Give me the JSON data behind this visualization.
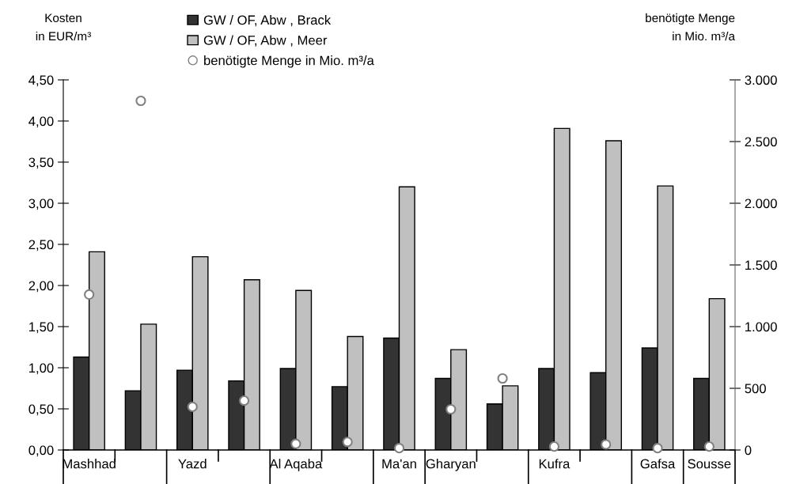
{
  "chart_data": {
    "type": "bar",
    "ylabel": "Kosten\nin EUR/m³",
    "y2label": "benötigte Menge\nin Mio. m³/a",
    "categories": [
      "Mashhad",
      null,
      "Yazd",
      null,
      "Al Aqaba",
      null,
      "Ma'an",
      "Gharyan",
      null,
      "Kufra",
      null,
      "Gafsa",
      "Sousse"
    ],
    "series": [
      {
        "name": "GW / OF, Abw , Brack",
        "color": "#333333",
        "values": [
          1.13,
          0.72,
          0.97,
          0.84,
          0.99,
          0.77,
          1.36,
          0.87,
          0.56,
          0.99,
          0.94,
          1.24,
          0.87
        ]
      },
      {
        "name": "GW / OF, Abw , Meer",
        "color": "#c0c0c0",
        "values": [
          2.41,
          1.53,
          2.35,
          2.07,
          1.94,
          1.38,
          3.2,
          1.22,
          0.78,
          3.91,
          3.76,
          3.21,
          1.84
        ]
      },
      {
        "name": "benötigte Menge in Mio. m³/a",
        "type": "scatter",
        "axis": "y2",
        "color": "#808080",
        "values": [
          1260,
          2830,
          350,
          400,
          50,
          65,
          15,
          330,
          580,
          28,
          45,
          15,
          28
        ]
      }
    ],
    "ylim": [
      0,
      4.5
    ],
    "yticks": [
      {
        "value": 0,
        "label": "0,00"
      },
      {
        "value": 0.5,
        "label": "0,50"
      },
      {
        "value": 1,
        "label": "1,00"
      },
      {
        "value": 1.5,
        "label": "1,50"
      },
      {
        "value": 2,
        "label": "2,00"
      },
      {
        "value": 2.5,
        "label": "2,50"
      },
      {
        "value": 3,
        "label": "3,00"
      },
      {
        "value": 3.5,
        "label": "3,50"
      },
      {
        "value": 4,
        "label": "4,00"
      },
      {
        "value": 4.5,
        "label": "4,50"
      }
    ],
    "y2lim": [
      0,
      3000
    ],
    "y2ticks": [
      0,
      500,
      {
        "value": 1000,
        "label": "1.000"
      },
      {
        "value": 1500,
        "label": "1.500"
      },
      {
        "value": 2000,
        "label": "2.000"
      },
      {
        "value": 2500,
        "label": "2.500"
      },
      {
        "value": 3000,
        "label": "3.000"
      }
    ],
    "marker": "circle",
    "grid": false,
    "legend": "top"
  }
}
